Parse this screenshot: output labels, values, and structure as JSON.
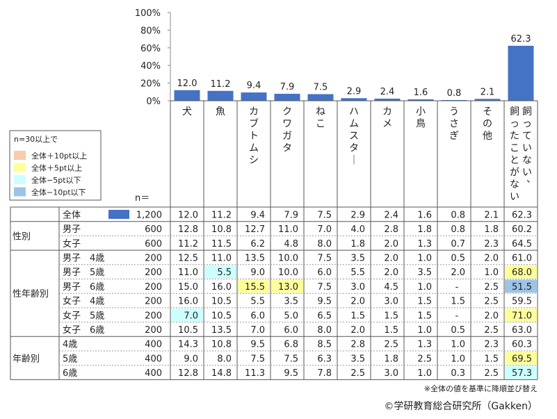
{
  "chart_data": {
    "type": "bar",
    "y_ticks": [
      "100%",
      "80%",
      "60%",
      "40%",
      "20%",
      "0%"
    ],
    "ylim": [
      0,
      100
    ],
    "categories": [
      "犬",
      "魚",
      "カブトムシ",
      "クワガタ",
      "ねこ",
      "ハムスター",
      "カメ",
      "小鳥",
      "うさぎ",
      "その他",
      "飼っていない、飼ったことがない"
    ],
    "category_lines": [
      [
        "犬"
      ],
      [
        "魚"
      ],
      [
        "カブトムシ"
      ],
      [
        "クワガタ"
      ],
      [
        "ねこ"
      ],
      [
        "ハムスター"
      ],
      [
        "カメ"
      ],
      [
        "小鳥"
      ],
      [
        "うさぎ"
      ],
      [
        "その他"
      ],
      [
        "飼っていない、",
        "飼ったことがない"
      ]
    ],
    "values": [
      12.0,
      11.2,
      9.4,
      7.9,
      7.5,
      2.9,
      2.4,
      1.6,
      0.8,
      2.1,
      62.3
    ],
    "value_labels": [
      "12.0",
      "11.2",
      "9.4",
      "7.9",
      "7.5",
      "2.9",
      "2.4",
      "1.6",
      "0.8",
      "2.1",
      "62.3"
    ],
    "bar_color": "#4472C4"
  },
  "legend": {
    "title": "n=30以上で",
    "items": [
      {
        "label": "全体＋10pt以上",
        "color": "#F8CBAD"
      },
      {
        "label": "全体＋5pt以上",
        "color": "#FFFF99"
      },
      {
        "label": "全体−5pt以下",
        "color": "#CCFFFF"
      },
      {
        "label": "全体−10pt以下",
        "color": "#9DC3E6"
      }
    ]
  },
  "table": {
    "n_header": "n＝",
    "rows": [
      {
        "group": "",
        "label": "全体",
        "n": "1,200",
        "values": [
          "12.0",
          "11.2",
          "9.4",
          "7.9",
          "7.5",
          "2.9",
          "2.4",
          "1.6",
          "0.8",
          "2.1",
          "62.3"
        ],
        "highlight": [
          0,
          0,
          0,
          0,
          0,
          0,
          0,
          0,
          0,
          0,
          0
        ]
      },
      {
        "group": "性別",
        "label": "男子",
        "n": "600",
        "values": [
          "12.8",
          "10.8",
          "12.7",
          "11.0",
          "7.0",
          "4.0",
          "2.8",
          "1.8",
          "0.8",
          "1.8",
          "60.2"
        ],
        "highlight": [
          0,
          0,
          0,
          0,
          0,
          0,
          0,
          0,
          0,
          0,
          0
        ]
      },
      {
        "group": "",
        "label": "女子",
        "n": "600",
        "values": [
          "11.2",
          "11.5",
          "6.2",
          "4.8",
          "8.0",
          "1.8",
          "2.0",
          "1.3",
          "0.7",
          "2.3",
          "64.5"
        ],
        "highlight": [
          0,
          0,
          0,
          0,
          0,
          0,
          0,
          0,
          0,
          0,
          0
        ]
      },
      {
        "group": "性年齢別",
        "label": "男子　4歳",
        "n": "200",
        "values": [
          "12.5",
          "11.0",
          "13.5",
          "10.0",
          "7.5",
          "3.5",
          "2.0",
          "1.0",
          "0.5",
          "2.0",
          "61.0"
        ],
        "highlight": [
          0,
          0,
          0,
          0,
          0,
          0,
          0,
          0,
          0,
          0,
          0
        ]
      },
      {
        "group": "",
        "label": "男子　5歳",
        "n": "200",
        "values": [
          "11.0",
          "5.5",
          "9.0",
          "10.0",
          "6.0",
          "5.5",
          "2.0",
          "3.5",
          "2.0",
          "1.0",
          "68.0"
        ],
        "highlight": [
          0,
          -5,
          0,
          0,
          0,
          0,
          0,
          0,
          0,
          0,
          5
        ]
      },
      {
        "group": "",
        "label": "男子　6歳",
        "n": "200",
        "values": [
          "15.0",
          "16.0",
          "15.5",
          "13.0",
          "7.5",
          "3.0",
          "4.5",
          "1.0",
          "-",
          "2.5",
          "51.5"
        ],
        "highlight": [
          0,
          0,
          5,
          5,
          0,
          0,
          0,
          0,
          0,
          0,
          -10
        ]
      },
      {
        "group": "",
        "label": "女子　4歳",
        "n": "200",
        "values": [
          "16.0",
          "10.5",
          "5.5",
          "3.5",
          "9.5",
          "2.0",
          "3.0",
          "1.5",
          "1.5",
          "2.5",
          "59.5"
        ],
        "highlight": [
          0,
          0,
          0,
          0,
          0,
          0,
          0,
          0,
          0,
          0,
          0
        ]
      },
      {
        "group": "",
        "label": "女子　5歳",
        "n": "200",
        "values": [
          "7.0",
          "10.5",
          "6.0",
          "5.0",
          "6.5",
          "1.5",
          "1.5",
          "1.5",
          "-",
          "2.0",
          "71.0"
        ],
        "highlight": [
          -5,
          0,
          0,
          0,
          0,
          0,
          0,
          0,
          0,
          0,
          5
        ]
      },
      {
        "group": "",
        "label": "女子　6歳",
        "n": "200",
        "values": [
          "10.5",
          "13.5",
          "7.0",
          "6.0",
          "8.0",
          "2.0",
          "1.5",
          "1.0",
          "0.5",
          "2.5",
          "63.0"
        ],
        "highlight": [
          0,
          0,
          0,
          0,
          0,
          0,
          0,
          0,
          0,
          0,
          0
        ]
      },
      {
        "group": "年齢別",
        "label": "4歳",
        "n": "400",
        "values": [
          "14.3",
          "10.8",
          "9.5",
          "6.8",
          "8.5",
          "2.8",
          "2.5",
          "1.3",
          "1.0",
          "2.3",
          "60.3"
        ],
        "highlight": [
          0,
          0,
          0,
          0,
          0,
          0,
          0,
          0,
          0,
          0,
          0
        ]
      },
      {
        "group": "",
        "label": "5歳",
        "n": "400",
        "values": [
          "9.0",
          "8.0",
          "7.5",
          "7.5",
          "6.3",
          "3.5",
          "1.8",
          "2.5",
          "1.0",
          "1.5",
          "69.5"
        ],
        "highlight": [
          0,
          0,
          0,
          0,
          0,
          0,
          0,
          0,
          0,
          0,
          5
        ]
      },
      {
        "group": "",
        "label": "6歳",
        "n": "400",
        "values": [
          "12.8",
          "14.8",
          "11.3",
          "9.5",
          "7.8",
          "2.5",
          "3.0",
          "1.0",
          "0.3",
          "2.5",
          "57.3"
        ],
        "highlight": [
          0,
          0,
          0,
          0,
          0,
          0,
          0,
          0,
          0,
          0,
          -5
        ]
      }
    ]
  },
  "note": "※全体の値を基準に降順並び替え",
  "copyright": "©学研教育総合研究所（Gakken）"
}
